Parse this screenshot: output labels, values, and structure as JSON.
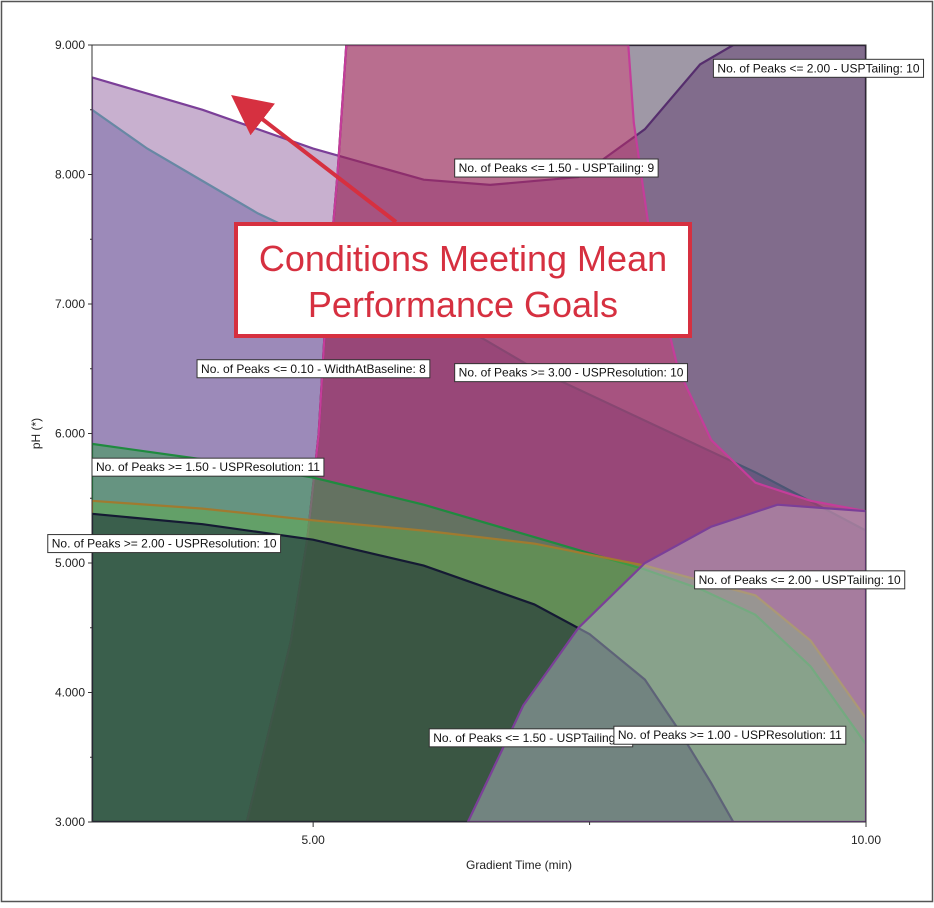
{
  "chart_data": {
    "type": "area",
    "title": "",
    "xlabel": "Gradient Time (min)",
    "ylabel": "pH (*)",
    "xlim": [
      3.0,
      10.0
    ],
    "ylim": [
      3.0,
      9.0
    ],
    "x_ticks": [
      {
        "value": 5.0,
        "label": "5.00"
      },
      {
        "value": 10.0,
        "label": "10.00"
      }
    ],
    "y_ticks": [
      {
        "value": 3.0,
        "label": "3.000"
      },
      {
        "value": 4.0,
        "label": "4.000"
      },
      {
        "value": 5.0,
        "label": "5.000"
      },
      {
        "value": 6.0,
        "label": "6.000"
      },
      {
        "value": 7.0,
        "label": "7.000"
      },
      {
        "value": 8.0,
        "label": "8.000"
      },
      {
        "value": 9.0,
        "label": "9.000"
      }
    ],
    "background": "#ffffff",
    "regions": [
      {
        "name": "width-baseline-region",
        "fill": "#3d55a0",
        "opacity": 0.5,
        "stroke": "#2aa6a0",
        "points": [
          [
            3.0,
            8.5
          ],
          [
            3.5,
            8.2
          ],
          [
            4.0,
            7.95
          ],
          [
            4.5,
            7.7
          ],
          [
            5.0,
            7.5
          ],
          [
            5.5,
            7.25
          ],
          [
            6.0,
            7.0
          ],
          [
            7.0,
            6.5
          ],
          [
            8.0,
            6.1
          ],
          [
            9.0,
            5.7
          ],
          [
            10.0,
            5.25
          ],
          [
            10.0,
            3.0
          ],
          [
            3.0,
            3.0
          ]
        ]
      },
      {
        "name": "tailing-9-upper-region",
        "fill": "#9b70a8",
        "opacity": 0.55,
        "stroke": "#7b3f98",
        "points": [
          [
            3.0,
            8.75
          ],
          [
            4.0,
            8.5
          ],
          [
            5.0,
            8.2
          ],
          [
            6.0,
            7.96
          ],
          [
            6.6,
            7.92
          ],
          [
            7.4,
            7.98
          ],
          [
            8.0,
            8.35
          ],
          [
            8.5,
            8.85
          ],
          [
            8.8,
            9.0
          ],
          [
            10.0,
            9.0
          ],
          [
            10.0,
            3.0
          ],
          [
            3.0,
            3.0
          ]
        ]
      },
      {
        "name": "tailing-9-lower-region",
        "fill": "#2b1a3a",
        "opacity": 0.45,
        "stroke": "#2a1a38",
        "points": [
          [
            4.4,
            3.0
          ],
          [
            4.6,
            3.7
          ],
          [
            4.8,
            4.4
          ],
          [
            4.95,
            5.2
          ],
          [
            5.05,
            6.0
          ],
          [
            5.12,
            7.0
          ],
          [
            5.22,
            8.0
          ],
          [
            5.3,
            9.0
          ],
          [
            10.0,
            9.0
          ],
          [
            10.0,
            3.0
          ]
        ]
      },
      {
        "name": "tailing-10-region",
        "fill": "#e0306e",
        "opacity": 0.4,
        "stroke": "#c43d9a",
        "points": [
          [
            5.3,
            9.0
          ],
          [
            5.22,
            8.0
          ],
          [
            5.12,
            7.0
          ],
          [
            5.05,
            6.0
          ],
          [
            4.95,
            5.2
          ],
          [
            4.8,
            4.4
          ],
          [
            4.6,
            3.7
          ],
          [
            4.4,
            3.0
          ],
          [
            10.0,
            3.0
          ],
          [
            10.0,
            5.4
          ],
          [
            9.5,
            5.48
          ],
          [
            9.0,
            5.62
          ],
          [
            8.6,
            5.95
          ],
          [
            8.3,
            6.5
          ],
          [
            8.1,
            7.2
          ],
          [
            8.0,
            7.8
          ],
          [
            7.9,
            8.4
          ],
          [
            7.85,
            9.0
          ]
        ]
      },
      {
        "name": "resolution-11-region",
        "fill": "#2f9e4a",
        "opacity": 0.5,
        "stroke": "#1f8a3f",
        "points": [
          [
            3.0,
            5.92
          ],
          [
            4.0,
            5.8
          ],
          [
            5.0,
            5.66
          ],
          [
            6.0,
            5.45
          ],
          [
            7.0,
            5.2
          ],
          [
            8.0,
            4.95
          ],
          [
            8.5,
            4.8
          ],
          [
            9.0,
            4.6
          ],
          [
            9.5,
            4.2
          ],
          [
            10.0,
            3.6
          ],
          [
            10.0,
            3.0
          ],
          [
            3.0,
            3.0
          ]
        ]
      },
      {
        "name": "resolution-1-region",
        "fill": "#5faf4a",
        "opacity": 0.45,
        "stroke": "#a07a30",
        "points": [
          [
            3.0,
            5.48
          ],
          [
            4.0,
            5.42
          ],
          [
            5.0,
            5.33
          ],
          [
            6.0,
            5.25
          ],
          [
            7.0,
            5.15
          ],
          [
            8.0,
            4.98
          ],
          [
            9.0,
            4.75
          ],
          [
            9.5,
            4.4
          ],
          [
            10.0,
            3.8
          ],
          [
            10.0,
            3.0
          ],
          [
            3.0,
            3.0
          ]
        ]
      },
      {
        "name": "resolution-10-region",
        "fill": "#1a2a35",
        "opacity": 0.55,
        "stroke": "#151a33",
        "points": [
          [
            3.0,
            5.38
          ],
          [
            4.0,
            5.3
          ],
          [
            5.0,
            5.18
          ],
          [
            6.0,
            4.98
          ],
          [
            7.0,
            4.68
          ],
          [
            7.5,
            4.45
          ],
          [
            8.0,
            4.1
          ],
          [
            8.3,
            3.72
          ],
          [
            8.6,
            3.3
          ],
          [
            8.8,
            3.0
          ],
          [
            3.0,
            3.0
          ]
        ]
      },
      {
        "name": "tailing-10-lower-region",
        "fill": "#b8bccc",
        "opacity": 0.45,
        "stroke": "#7b3f98",
        "points": [
          [
            6.4,
            3.0
          ],
          [
            6.9,
            3.9
          ],
          [
            7.4,
            4.5
          ],
          [
            8.0,
            5.0
          ],
          [
            8.6,
            5.28
          ],
          [
            9.2,
            5.45
          ],
          [
            10.0,
            5.4
          ],
          [
            10.0,
            3.0
          ]
        ]
      }
    ],
    "labels": [
      {
        "text": "No. of Peaks <= 2.00 - USPTailing: 10",
        "x": 8.62,
        "y": 8.82
      },
      {
        "text": "No. of Peaks <= 1.50 - USPTailing: 9",
        "x": 6.28,
        "y": 8.05
      },
      {
        "text": "No. of Peaks <= 0.10 - WidthAtBaseline: 8",
        "x": 3.95,
        "y": 6.5
      },
      {
        "text": "No. of Peaks >= 3.00 - USPResolution: 10",
        "x": 6.28,
        "y": 6.47
      },
      {
        "text": "No. of Peaks >= 1.50 - USPResolution: 11",
        "x": 3.0,
        "y": 5.74
      },
      {
        "text": "No. of Peaks >= 2.00 - USPResolution: 10",
        "x": 2.6,
        "y": 5.15
      },
      {
        "text": "No. of Peaks <= 2.00 - USPTailing: 10",
        "x": 8.45,
        "y": 4.87
      },
      {
        "text": "No. of Peaks <= 1.50 - USPTailing: 9",
        "x": 6.05,
        "y": 3.65
      },
      {
        "text": "No. of Peaks >= 1.00 - USPResolution: 11",
        "x": 7.72,
        "y": 3.67
      }
    ],
    "callout": {
      "text_lines": [
        "Conditions Meeting Mean",
        "Performance Goals"
      ],
      "color": "#d63040",
      "arrow_to": [
        4.3,
        8.6
      ],
      "arrow_from": [
        5.8,
        7.6
      ]
    }
  }
}
